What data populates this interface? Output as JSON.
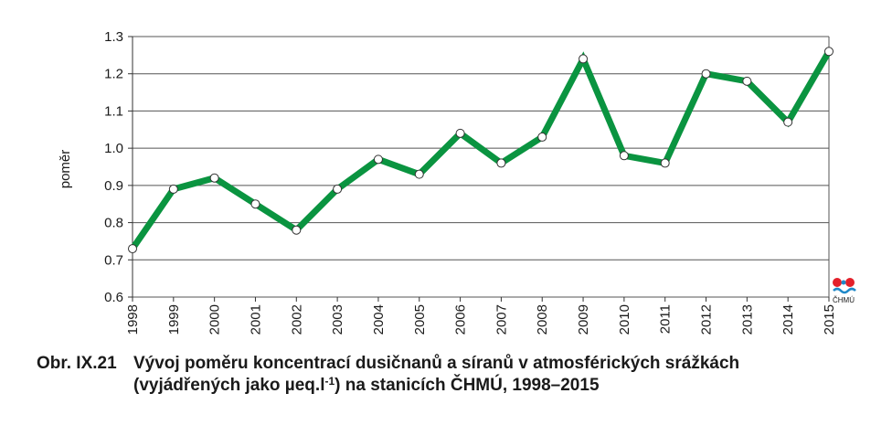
{
  "chart_data": {
    "type": "line",
    "x": [
      "1998",
      "1999",
      "2000",
      "2001",
      "2002",
      "2003",
      "2004",
      "2005",
      "2006",
      "2007",
      "2008",
      "2009",
      "2010",
      "2011",
      "2012",
      "2013",
      "2014",
      "2015"
    ],
    "series": [
      {
        "values": [
          0.73,
          0.89,
          0.92,
          0.85,
          0.78,
          0.89,
          0.97,
          0.93,
          1.04,
          0.96,
          1.03,
          1.24,
          0.98,
          0.96,
          1.2,
          1.18,
          1.07,
          1.26
        ]
      }
    ],
    "ylabel": "poměr",
    "xlabel": "",
    "ylim": [
      0.6,
      1.3
    ],
    "yticks": [
      "0.6",
      "0.7",
      "0.8",
      "0.9",
      "1.0",
      "1.1",
      "1.2",
      "1.3"
    ],
    "grid": true,
    "legend": "none",
    "colors": {
      "line": "#0a9440",
      "marker_fill": "#ffffff",
      "marker_stroke": "#333333",
      "grid": "#555555"
    }
  },
  "caption": {
    "number": "Obr. IX.21",
    "line1": "Vývoj poměru koncentrací dusičnanů a síranů v atmosférických srážkách",
    "line2_pre": "(vyjádřených jako µeq.l",
    "line2_sup": "-1",
    "line2_post": ") na stanicích ČHMÚ, 1998–2015"
  },
  "logo": {
    "label": "ČHMÚ",
    "colors": {
      "dot": "#e3202a",
      "wave": "#1e88c8"
    }
  }
}
